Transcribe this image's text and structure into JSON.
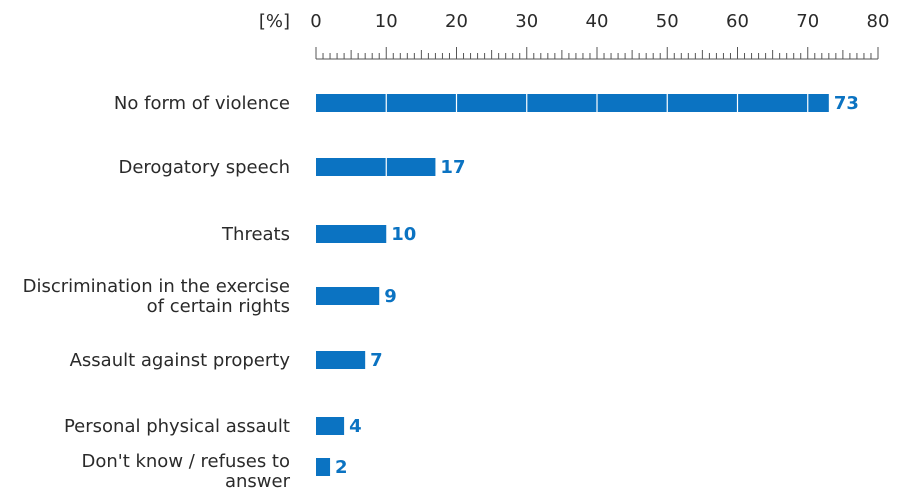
{
  "chart_data": {
    "type": "bar",
    "orientation": "horizontal",
    "unit_label": "[%]",
    "xlim": [
      0,
      80
    ],
    "ticks": [
      0,
      10,
      20,
      30,
      40,
      50,
      60,
      70,
      80
    ],
    "categories": [
      "No form of violence",
      "Derogatory speech",
      "Threats",
      "Discrimination in the exercise of certain rights",
      "Assault against property",
      "Personal physical assault",
      "Don't know / refuses to answer"
    ],
    "category_lines": [
      [
        "No form of violence"
      ],
      [
        "Derogatory speech"
      ],
      [
        "Threats"
      ],
      [
        "Discrimination in the exercise",
        "of certain rights"
      ],
      [
        "Assault against property"
      ],
      [
        "Personal physical assault"
      ],
      [
        "Don't know / refuses to",
        "answer"
      ]
    ],
    "values": [
      73,
      17,
      10,
      9,
      7,
      4,
      2
    ],
    "bar_color": "#0b73c2",
    "value_label_color": "#0b73c2",
    "grid": false,
    "legend": "none",
    "title": "",
    "xlabel": "",
    "ylabel": ""
  }
}
